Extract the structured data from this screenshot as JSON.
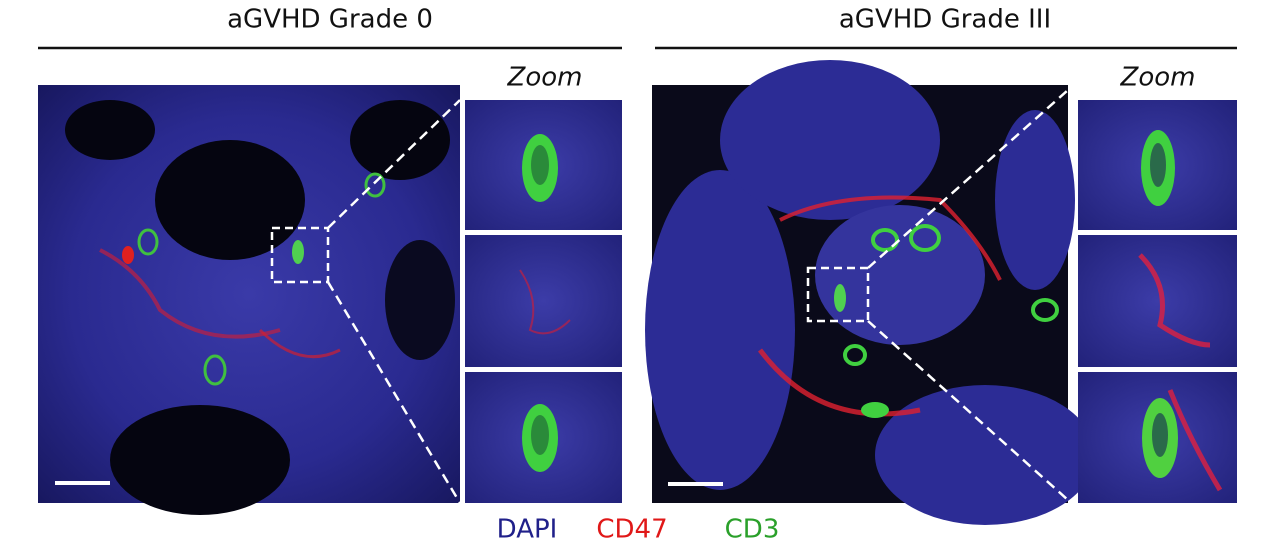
{
  "panels": [
    {
      "title": "aGVHD Grade 0",
      "zoom_label": "Zoom"
    },
    {
      "title": "aGVHD Grade III",
      "zoom_label": "Zoom"
    }
  ],
  "legend": [
    {
      "label": "DAPI",
      "color": "#20208a"
    },
    {
      "label": "CD47",
      "color": "#e01818"
    },
    {
      "label": "CD3",
      "color": "#2aa02a"
    }
  ]
}
